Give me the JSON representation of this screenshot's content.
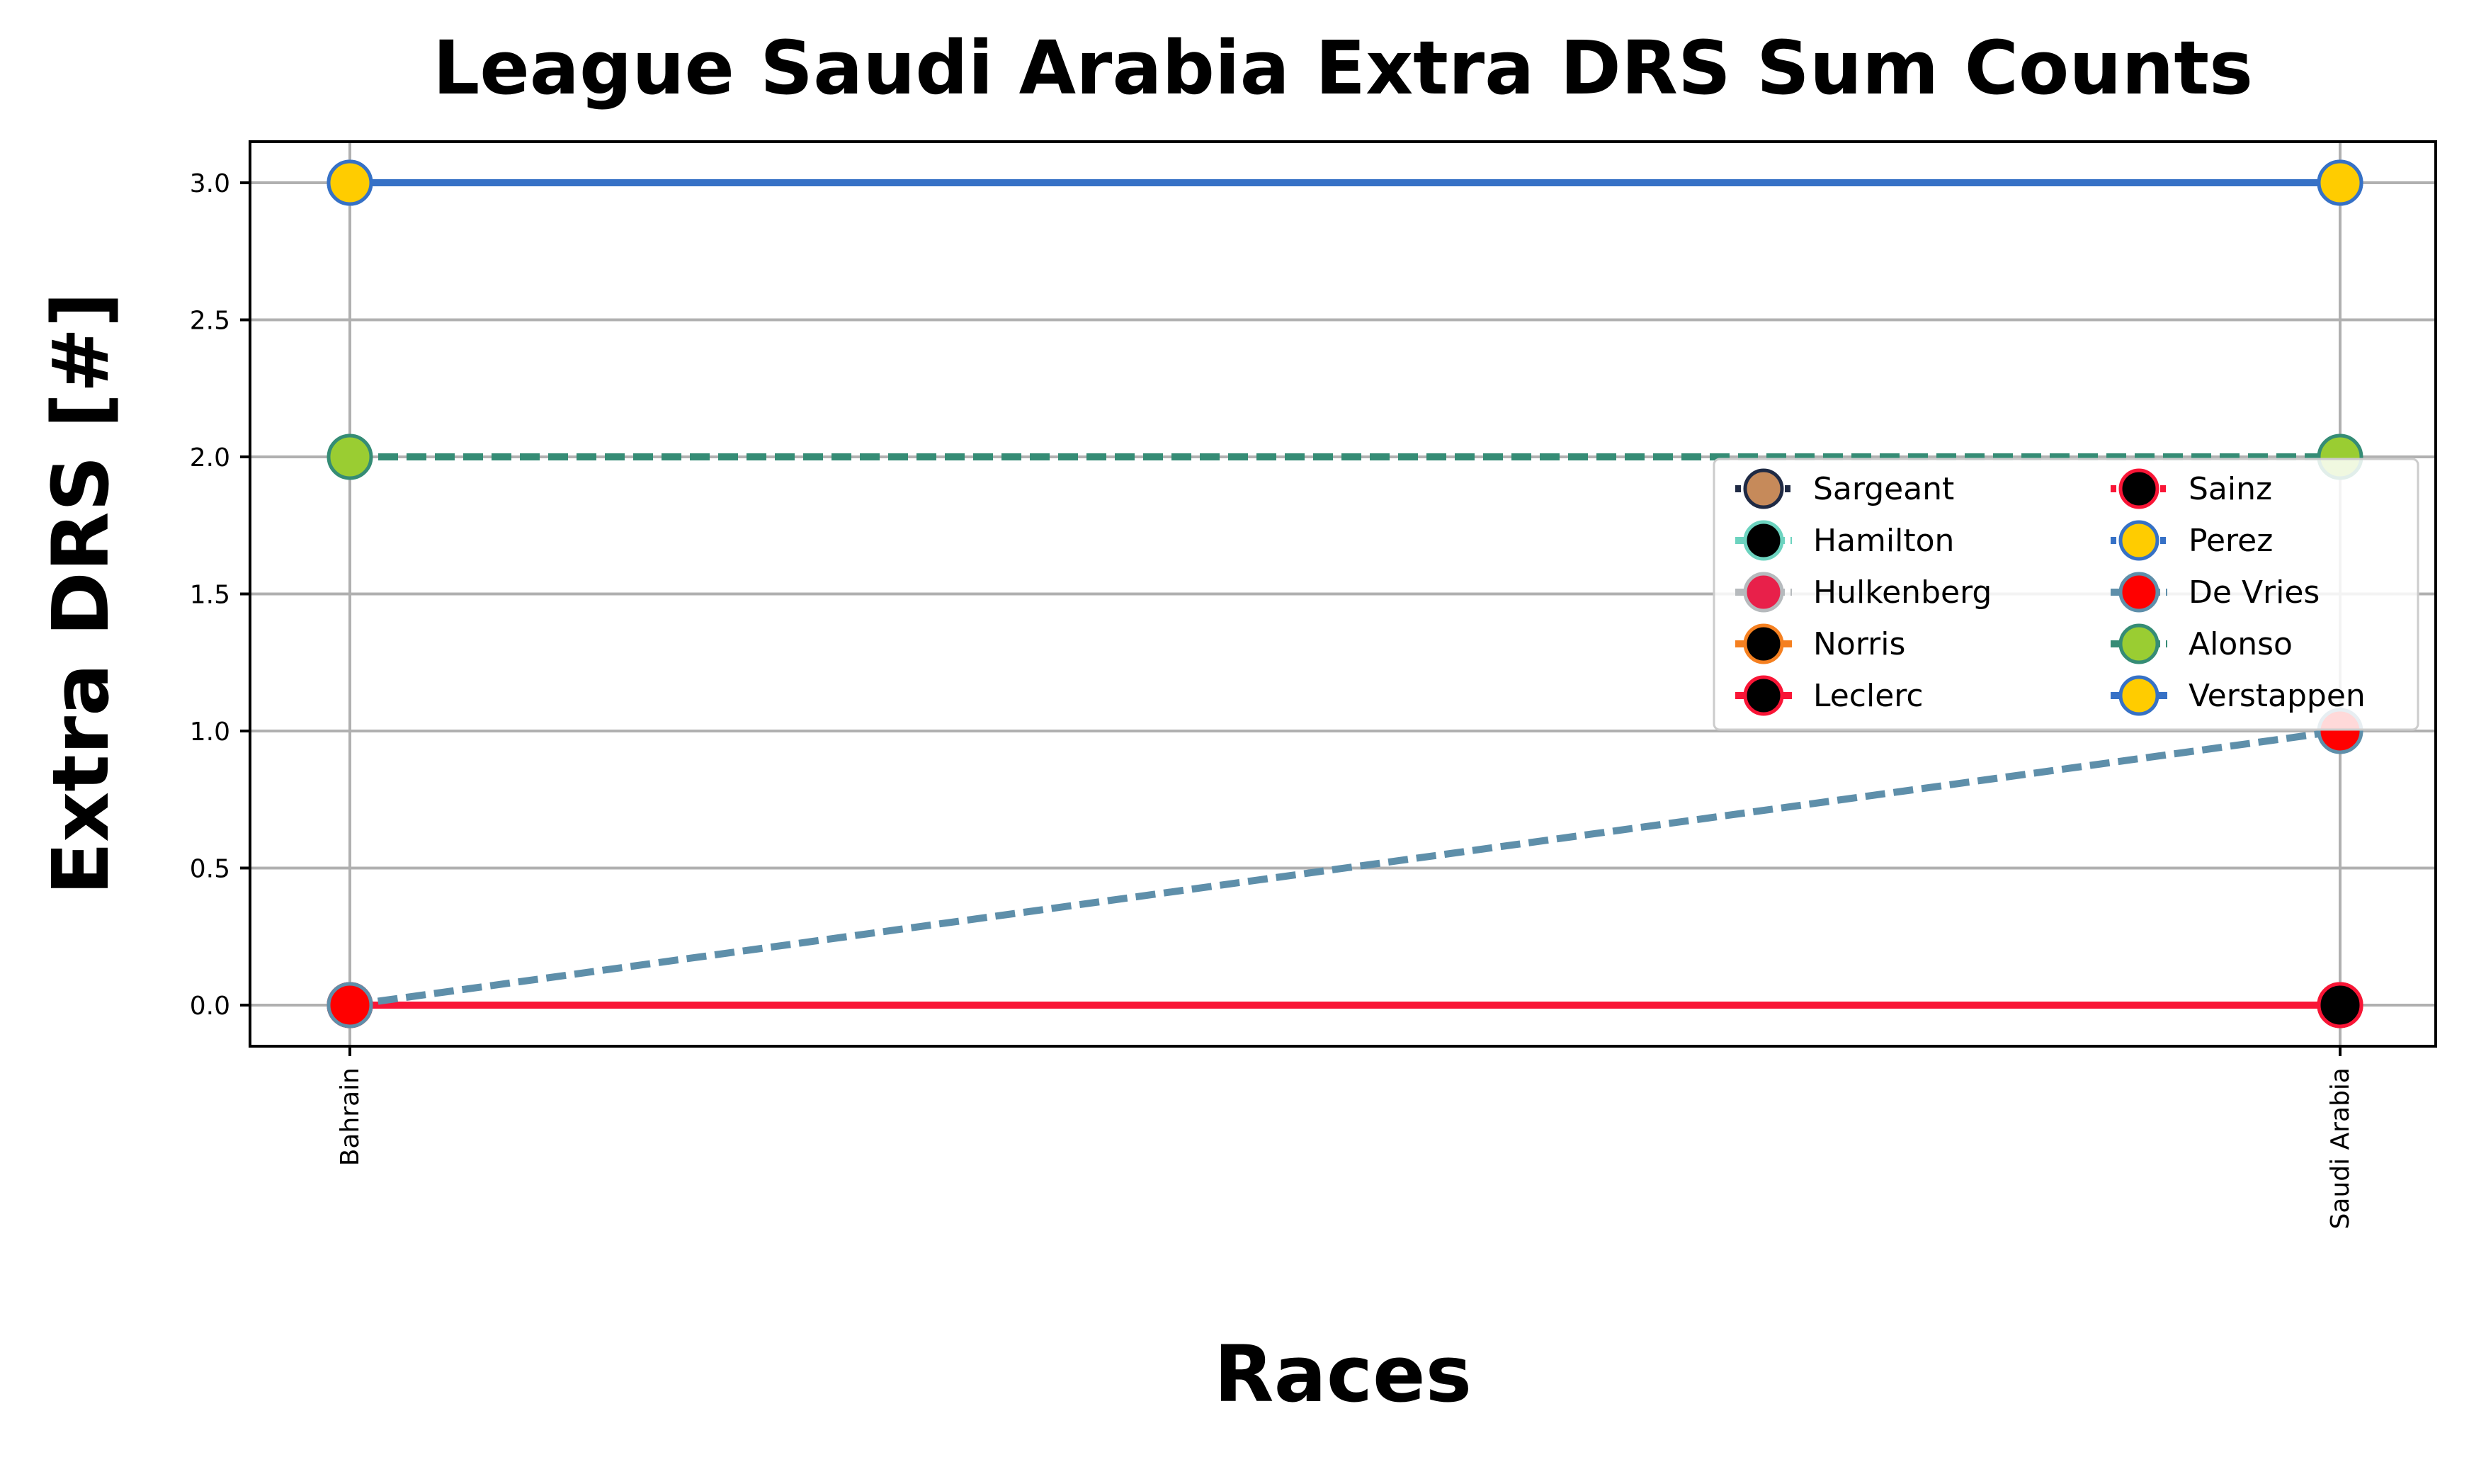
{
  "chart_data": {
    "type": "line",
    "title": "League Saudi Arabia Extra DRS Sum Counts",
    "xlabel": "Races",
    "ylabel": "Extra DRS [#]",
    "categories": [
      "Bahrain",
      "Saudi Arabia"
    ],
    "ylim": [
      -0.15,
      3.15
    ],
    "yticks": [
      0.0,
      0.5,
      1.0,
      1.5,
      2.0,
      2.5,
      3.0
    ],
    "ytick_labels": [
      "0.0",
      "0.5",
      "1.0",
      "1.5",
      "2.0",
      "2.5",
      "3.0"
    ],
    "grid": true,
    "legend_position": "center-right",
    "legend_columns": 2,
    "series": [
      {
        "name": "Sargeant",
        "values": [
          0,
          0
        ],
        "color": "#1f2a44",
        "marker": "#c68a5a",
        "dash": "dotted"
      },
      {
        "name": "Hamilton",
        "values": [
          0,
          0
        ],
        "color": "#6cd3bf",
        "marker": "#000000",
        "dash": "dashed"
      },
      {
        "name": "Hulkenberg",
        "values": [
          0,
          0
        ],
        "color": "#b6babd",
        "marker": "#e8204a",
        "dash": "dashed"
      },
      {
        "name": "Norris",
        "values": [
          0,
          0
        ],
        "color": "#f58020",
        "marker": "#000000",
        "dash": "solid"
      },
      {
        "name": "Leclerc",
        "values": [
          0,
          0
        ],
        "color": "#f91536",
        "marker": "#000000",
        "dash": "solid"
      },
      {
        "name": "Sainz",
        "values": [
          0,
          0
        ],
        "color": "#f91536",
        "marker": "#000000",
        "dash": "dotted"
      },
      {
        "name": "Perez",
        "values": [
          3,
          3
        ],
        "color": "#3671c6",
        "marker": "#ffcc00",
        "dash": "dotted"
      },
      {
        "name": "De Vries",
        "values": [
          0,
          1
        ],
        "color": "#5e8faa",
        "marker": "#ff0000",
        "dash": "dashed"
      },
      {
        "name": "Alonso",
        "values": [
          2,
          2
        ],
        "color": "#358c75",
        "marker": "#9acd32",
        "dash": "dashed"
      },
      {
        "name": "Verstappen",
        "values": [
          3,
          3
        ],
        "color": "#3671c6",
        "marker": "#ffcc00",
        "dash": "solid"
      }
    ]
  }
}
